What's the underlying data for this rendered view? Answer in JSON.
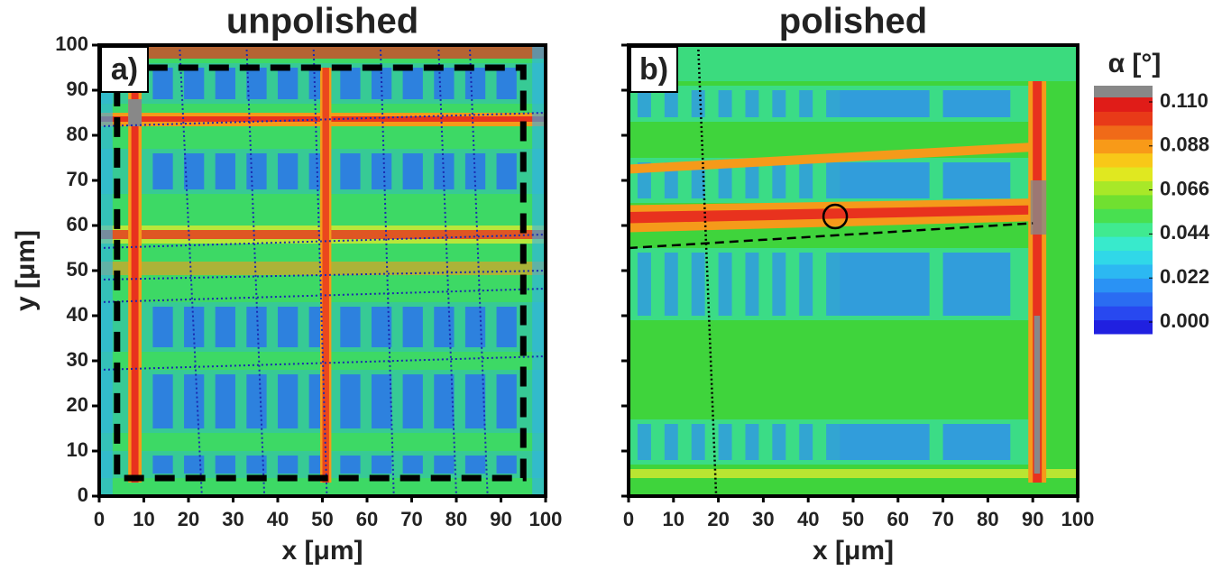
{
  "chart_data": [
    {
      "type": "heatmap",
      "title": "unpolished",
      "panel_label": "a)",
      "xlabel": "x [μm]",
      "ylabel": "y [μm]",
      "xlim": [
        0,
        100
      ],
      "ylim": [
        0,
        100
      ],
      "xticks": [
        0,
        10,
        20,
        30,
        40,
        50,
        60,
        70,
        80,
        90,
        100
      ],
      "yticks": [
        0,
        10,
        20,
        30,
        40,
        50,
        60,
        70,
        80,
        90,
        100
      ],
      "show_ytick_labels": true
    },
    {
      "type": "heatmap",
      "title": "polished",
      "panel_label": "b)",
      "xlabel": "x [μm]",
      "xlim": [
        0,
        100
      ],
      "ylim": [
        0,
        100
      ],
      "xticks": [
        0,
        10,
        20,
        30,
        40,
        50,
        60,
        70,
        80,
        90,
        100
      ],
      "yticks": [
        0,
        10,
        20,
        30,
        40,
        50,
        60,
        70,
        80,
        90,
        100
      ],
      "show_ytick_labels": false
    }
  ],
  "colorbar": {
    "title": "α [°]",
    "lim": [
      0,
      0.11
    ],
    "ticks": [
      {
        "value": 0.11,
        "label": "0.110"
      },
      {
        "value": 0.088,
        "label": "0.088"
      },
      {
        "value": 0.066,
        "label": "0.066"
      },
      {
        "value": 0.044,
        "label": "0.044"
      },
      {
        "value": 0.022,
        "label": "0.022"
      },
      {
        "value": 0,
        "label": "0.000"
      }
    ]
  }
}
